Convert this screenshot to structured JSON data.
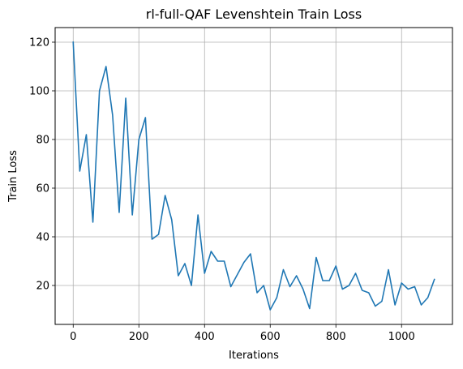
{
  "chart_data": {
    "type": "line",
    "title": "rl-full-QAF Levenshtein Train Loss",
    "xlabel": "Iterations",
    "ylabel": "Train Loss",
    "xlim": [
      -55,
      1155
    ],
    "ylim": [
      4,
      126
    ],
    "xticks": [
      0,
      200,
      400,
      600,
      800,
      1000
    ],
    "yticks": [
      20,
      40,
      60,
      80,
      100,
      120
    ],
    "grid": true,
    "series": [
      {
        "color": "#1f77b4",
        "x": [
          0,
          20,
          40,
          60,
          80,
          100,
          120,
          140,
          160,
          180,
          200,
          220,
          240,
          260,
          280,
          300,
          320,
          340,
          360,
          380,
          400,
          420,
          440,
          460,
          480,
          500,
          520,
          540,
          560,
          580,
          600,
          620,
          640,
          660,
          680,
          700,
          720,
          740,
          760,
          780,
          800,
          820,
          840,
          860,
          880,
          900,
          920,
          940,
          960,
          980,
          1000,
          1020,
          1040,
          1060,
          1080,
          1100
        ],
        "y": [
          120,
          67,
          82,
          46,
          100,
          110,
          90,
          50,
          97,
          49,
          80,
          89,
          39,
          41,
          57,
          47,
          24,
          29,
          20,
          49,
          25,
          34,
          30,
          30,
          19.5,
          24.5,
          29.5,
          33,
          17,
          20,
          10,
          15,
          26.5,
          19.5,
          24,
          18.5,
          10.5,
          31.5,
          22,
          22,
          28,
          18.5,
          20,
          25,
          18,
          17,
          11.5,
          13.5,
          26.5,
          12,
          21,
          18.5,
          19.5,
          12,
          15,
          22.5
        ]
      }
    ]
  }
}
